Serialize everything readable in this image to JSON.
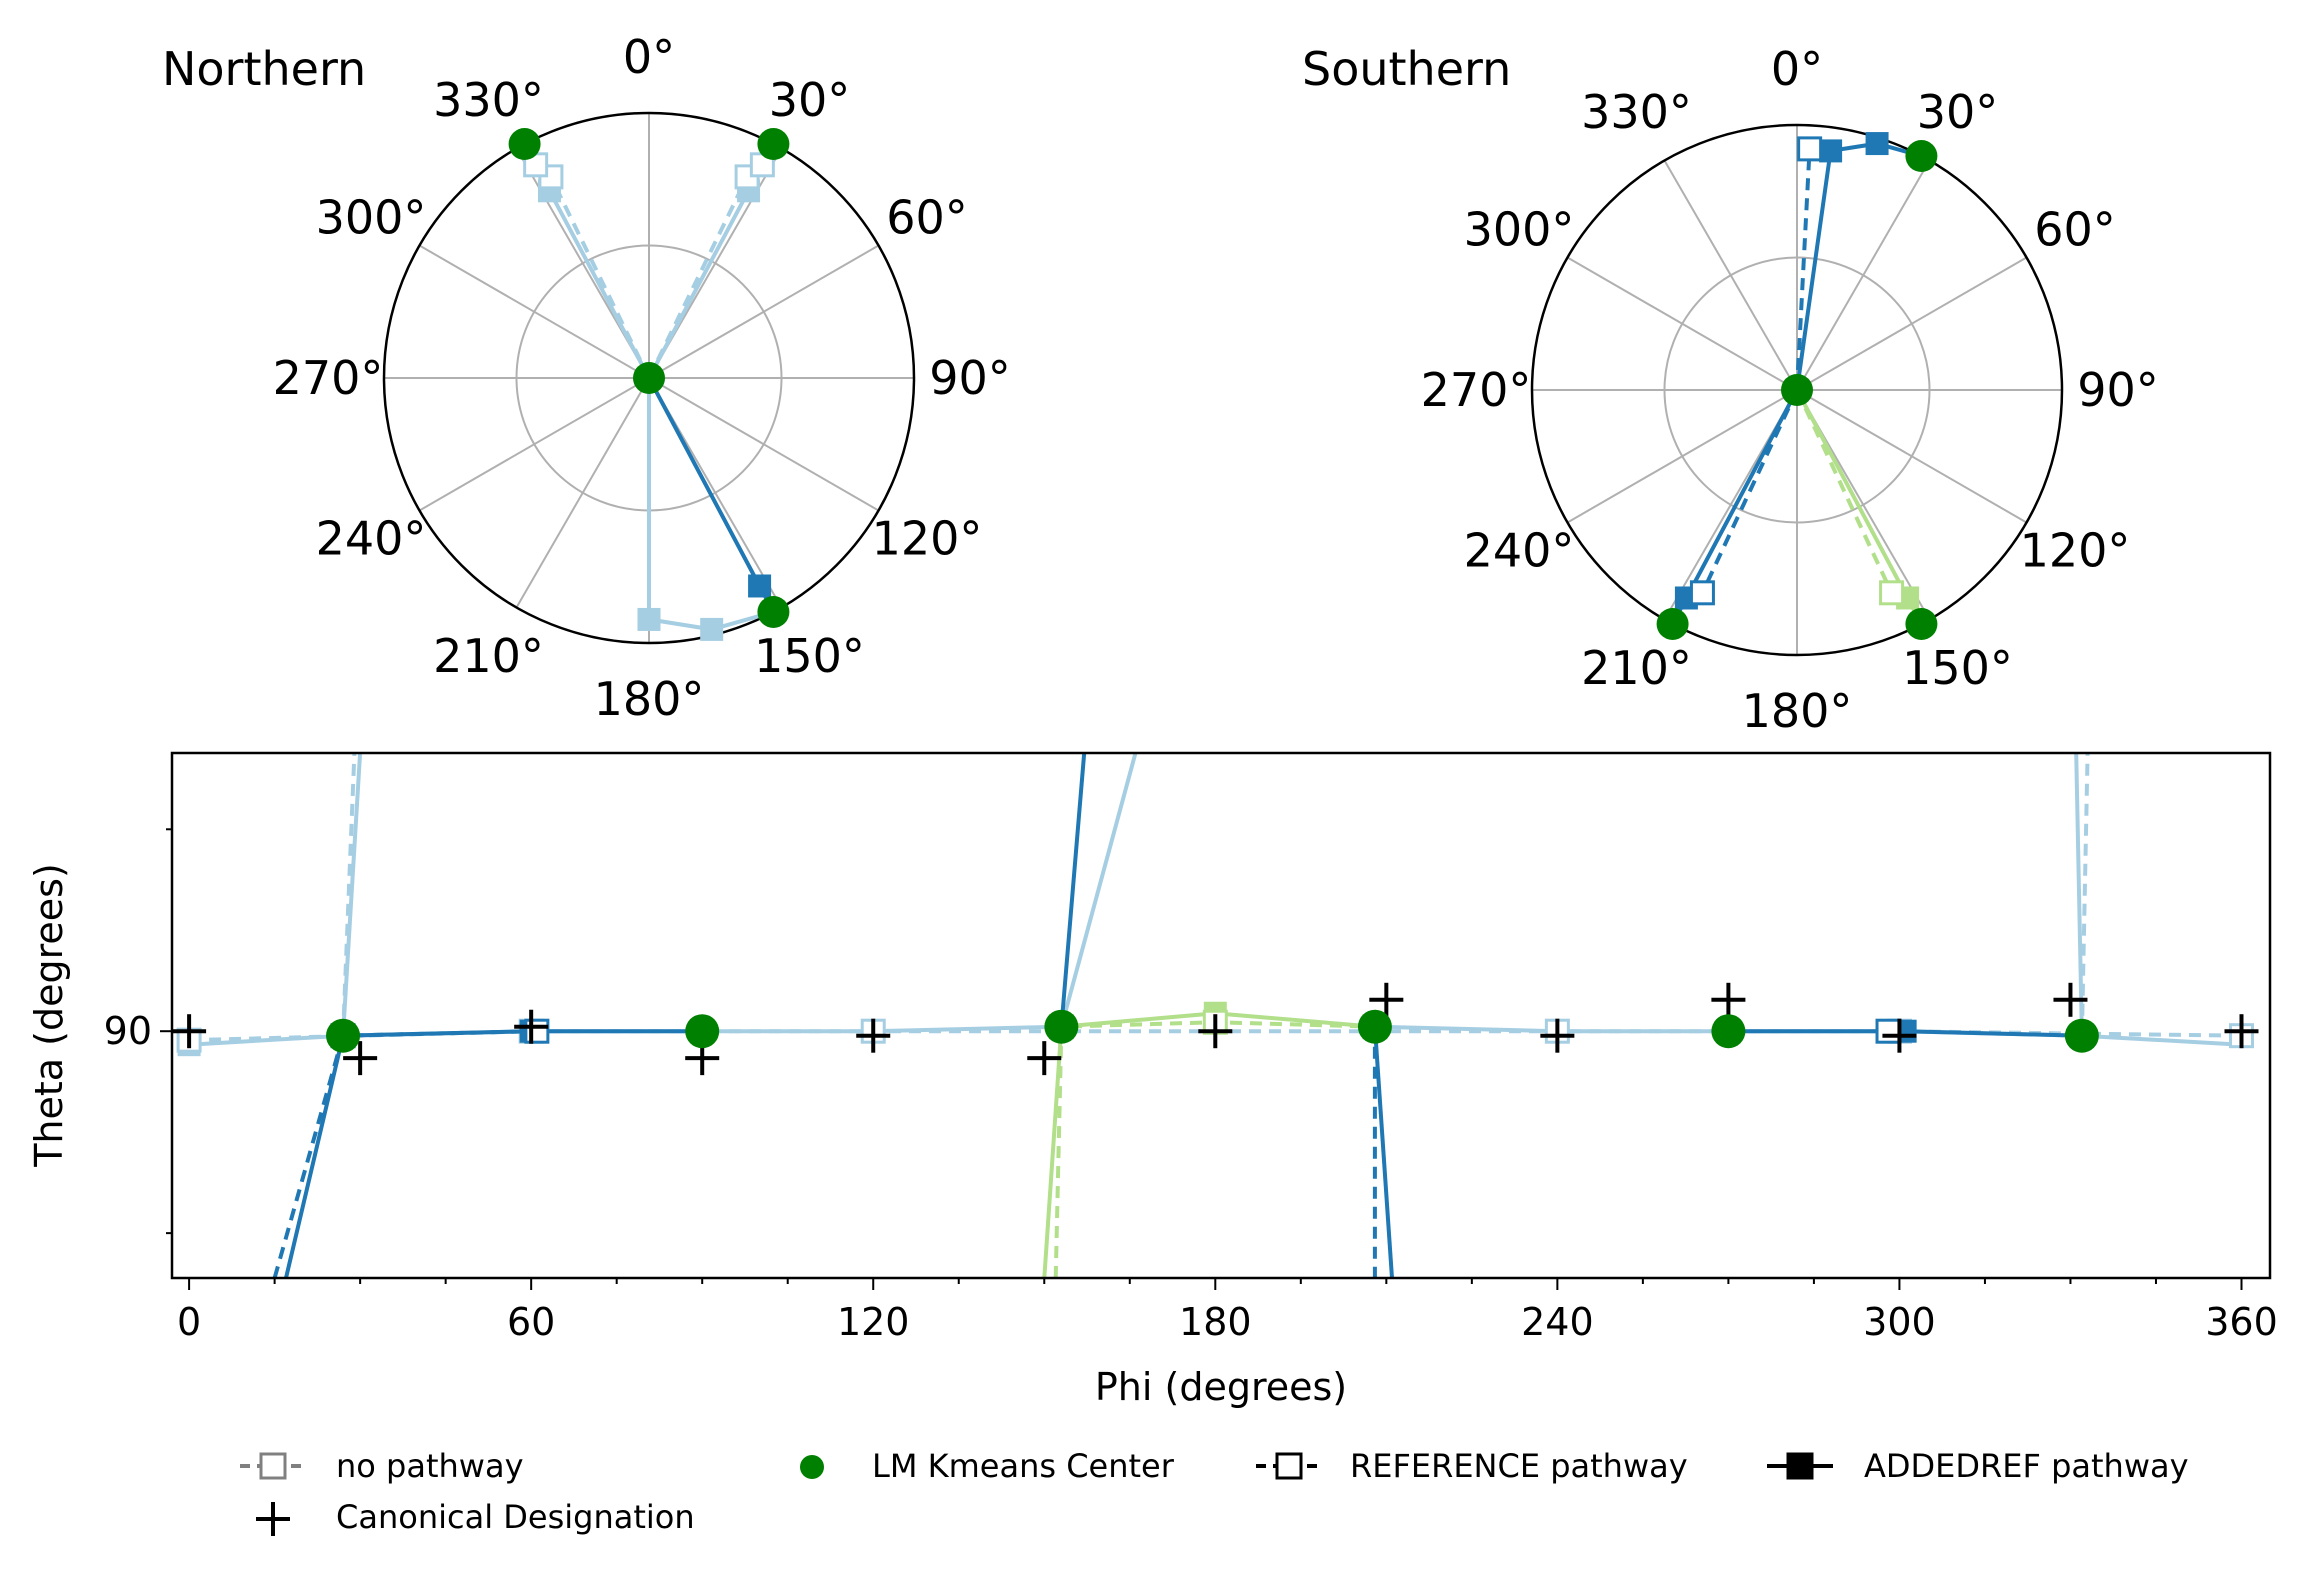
{
  "colors": {
    "dark_blue": "#1f78b4",
    "light_blue": "#a6cee3",
    "light_green": "#b2df8a",
    "center_green": "#008000",
    "grid": "#b0b0b0",
    "legend_gray": "#808080",
    "canonical": "#000000"
  },
  "chart_data": [
    {
      "type": "polar",
      "title": "Northern",
      "angle_labels": [
        "0°",
        "30°",
        "60°",
        "90°",
        "120°",
        "150°",
        "180°",
        "210°",
        "240°",
        "270°",
        "300°",
        "330°"
      ],
      "rmax": 90,
      "rgrid": [
        45,
        90
      ],
      "direction": "clockwise",
      "zero_location": "top",
      "centers": [
        {
          "phi": 0,
          "r": 0
        },
        {
          "phi": 28,
          "r": 90
        },
        {
          "phi": 332,
          "r": 90
        },
        {
          "phi": 152,
          "r": 90
        }
      ],
      "series": [
        {
          "color": "light_blue",
          "style": "solid",
          "marker": "filled",
          "points": [
            [
              0,
              0
            ],
            [
              28,
              72
            ],
            [
              28,
              82
            ],
            [
              28,
              90
            ]
          ]
        },
        {
          "color": "light_blue",
          "style": "dashed",
          "marker": "open",
          "points": [
            [
              0,
              0
            ],
            [
              26,
              76
            ],
            [
              28,
              82
            ]
          ]
        },
        {
          "color": "light_blue",
          "style": "solid",
          "marker": "filled",
          "points": [
            [
              0,
              0
            ],
            [
              332,
              72
            ],
            [
              332,
              82
            ],
            [
              332,
              90
            ]
          ]
        },
        {
          "color": "light_blue",
          "style": "dashed",
          "marker": "open",
          "points": [
            [
              0,
              0
            ],
            [
              334,
              76
            ],
            [
              332,
              82
            ]
          ]
        },
        {
          "color": "dark_blue",
          "style": "solid",
          "marker": "filled",
          "points": [
            [
              0,
              0
            ],
            [
              152,
              80
            ],
            [
              152,
              90
            ]
          ]
        },
        {
          "color": "light_blue",
          "style": "solid",
          "marker": "filled",
          "points": [
            [
              0,
              0
            ],
            [
              180,
              82
            ],
            [
              166,
              88
            ],
            [
              152,
              90
            ]
          ]
        }
      ]
    },
    {
      "type": "polar",
      "title": "Southern",
      "angle_labels": [
        "0°",
        "30°",
        "60°",
        "90°",
        "120°",
        "150°",
        "180°",
        "210°",
        "240°",
        "270°",
        "300°",
        "330°"
      ],
      "rmax": 90,
      "rgrid": [
        45,
        90
      ],
      "direction": "clockwise",
      "zero_location": "top",
      "centers": [
        {
          "phi": 0,
          "r": 0
        },
        {
          "phi": 28,
          "r": 90
        },
        {
          "phi": 208,
          "r": 90
        },
        {
          "phi": 152,
          "r": 90
        }
      ],
      "series": [
        {
          "color": "dark_blue",
          "style": "solid",
          "marker": "filled",
          "points": [
            [
              0,
              0
            ],
            [
              8,
              82
            ],
            [
              18,
              88
            ],
            [
              28,
              90
            ]
          ]
        },
        {
          "color": "dark_blue",
          "style": "dashed",
          "marker": "open",
          "points": [
            [
              0,
              0
            ],
            [
              3,
              82
            ]
          ]
        },
        {
          "color": "dark_blue",
          "style": "solid",
          "marker": "filled",
          "points": [
            [
              0,
              0
            ],
            [
              208,
              80
            ],
            [
              208,
              90
            ]
          ]
        },
        {
          "color": "dark_blue",
          "style": "dashed",
          "marker": "open",
          "points": [
            [
              0,
              0
            ],
            [
              205,
              76
            ]
          ]
        },
        {
          "color": "light_green",
          "style": "solid",
          "marker": "filled",
          "points": [
            [
              0,
              0
            ],
            [
              152,
              80
            ],
            [
              152,
              90
            ]
          ]
        },
        {
          "color": "light_green",
          "style": "dashed",
          "marker": "open",
          "points": [
            [
              0,
              0
            ],
            [
              155,
              76
            ]
          ]
        }
      ]
    },
    {
      "type": "line",
      "xlabel": "Phi (degrees)",
      "ylabel": "Theta (degrees)",
      "xlim": [
        -3,
        365
      ],
      "ylim": [
        35,
        152
      ],
      "xticks": [
        0,
        60,
        120,
        180,
        240,
        300,
        360
      ],
      "yticks": [
        90
      ],
      "y_minor_ticks": [
        45,
        135
      ],
      "canonical": [
        [
          0,
          90
        ],
        [
          30,
          84
        ],
        [
          60,
          91
        ],
        [
          90,
          84
        ],
        [
          120,
          89
        ],
        [
          150,
          84
        ],
        [
          180,
          90
        ],
        [
          210,
          97
        ],
        [
          240,
          89
        ],
        [
          270,
          97
        ],
        [
          300,
          89
        ],
        [
          330,
          97
        ],
        [
          360,
          90
        ]
      ],
      "centers": [
        [
          27,
          89
        ],
        [
          90,
          90
        ],
        [
          153,
          91
        ],
        [
          208,
          91
        ],
        [
          270,
          90
        ],
        [
          332,
          89
        ]
      ],
      "series": [
        {
          "color": "light_blue",
          "style": "solid",
          "marker": "filled",
          "points": [
            [
              0,
              87
            ],
            [
              27,
              89
            ],
            [
              60,
              90
            ],
            [
              90,
              90
            ],
            [
              120,
              90
            ],
            [
              153,
              91
            ]
          ]
        },
        {
          "color": "light_blue",
          "style": "solid",
          "marker": "none",
          "points": [
            [
              27,
              89
            ],
            [
              30,
              152
            ]
          ]
        },
        {
          "color": "light_blue",
          "style": "dashed",
          "marker": "none",
          "points": [
            [
              27,
              89
            ],
            [
              29,
              152
            ]
          ]
        },
        {
          "color": "light_blue",
          "style": "solid",
          "marker": "none",
          "points": [
            [
              153,
              91
            ],
            [
              166,
              152
            ]
          ]
        },
        {
          "color": "light_blue",
          "style": "solid",
          "marker": "filled",
          "points": [
            [
              208,
              91
            ],
            [
              240,
              90
            ],
            [
              270,
              90
            ],
            [
              300,
              90
            ],
            [
              332,
              89
            ]
          ]
        },
        {
          "color": "light_blue",
          "style": "solid",
          "marker": "none",
          "points": [
            [
              332,
              89
            ],
            [
              331,
              152
            ]
          ]
        },
        {
          "color": "light_blue",
          "style": "dashed",
          "marker": "none",
          "points": [
            [
              332,
              89
            ],
            [
              333,
              152
            ]
          ]
        },
        {
          "color": "light_blue",
          "style": "solid",
          "marker": "none",
          "points": [
            [
              332,
              89
            ],
            [
              360,
              87
            ]
          ]
        },
        {
          "color": "light_blue",
          "style": "dashed",
          "marker": "open",
          "points": [
            [
              0,
              88
            ],
            [
              60,
              90
            ],
            [
              120,
              90
            ],
            [
              240,
              90
            ],
            [
              300,
              90
            ],
            [
              360,
              89
            ]
          ]
        },
        {
          "color": "dark_blue",
          "style": "solid",
          "marker": "filled",
          "points": [
            [
              17,
              35
            ],
            [
              27,
              89
            ],
            [
              60,
              90
            ],
            [
              90,
              90
            ]
          ]
        },
        {
          "color": "dark_blue",
          "style": "dashed",
          "marker": "open",
          "points": [
            [
              15,
              35
            ],
            [
              27,
              89
            ],
            [
              61,
              90
            ]
          ]
        },
        {
          "color": "dark_blue",
          "style": "solid",
          "marker": "none",
          "points": [
            [
              153,
              91
            ],
            [
              157,
              152
            ]
          ]
        },
        {
          "color": "dark_blue",
          "style": "solid",
          "marker": "none",
          "points": [
            [
              208,
              91
            ],
            [
              211,
              35
            ]
          ]
        },
        {
          "color": "dark_blue",
          "style": "dashed",
          "marker": "none",
          "points": [
            [
              208,
              91
            ],
            [
              208,
              35
            ]
          ]
        },
        {
          "color": "dark_blue",
          "style": "solid",
          "marker": "filled",
          "points": [
            [
              270,
              90
            ],
            [
              301,
              90
            ],
            [
              332,
              89
            ]
          ]
        },
        {
          "color": "dark_blue",
          "style": "dashed",
          "marker": "open",
          "points": [
            [
              298,
              90
            ]
          ]
        },
        {
          "color": "light_green",
          "style": "solid",
          "marker": "filled",
          "points": [
            [
              150,
              35
            ],
            [
              153,
              91
            ],
            [
              180,
              94
            ],
            [
              208,
              91
            ]
          ]
        },
        {
          "color": "light_green",
          "style": "dashed",
          "marker": "open",
          "points": [
            [
              152,
              35
            ],
            [
              153,
              91
            ],
            [
              180,
              92
            ],
            [
              208,
              91
            ]
          ]
        }
      ]
    }
  ],
  "legend": [
    {
      "label": "no pathway",
      "kind": "gray-dashed-open"
    },
    {
      "label": "LM Kmeans Center",
      "kind": "green-dot"
    },
    {
      "label": "REFERENCE pathway",
      "kind": "black-dashed-open"
    },
    {
      "label": "ADDEDREF pathway",
      "kind": "black-solid-filled"
    },
    {
      "label": "Canonical Designation",
      "kind": "plus"
    }
  ]
}
